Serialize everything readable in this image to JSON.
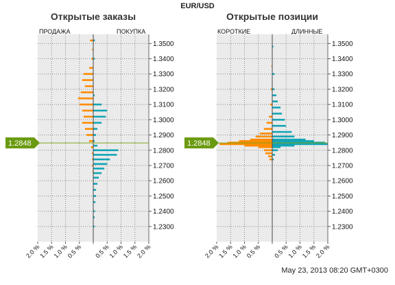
{
  "title": "EUR/USD",
  "timestamp": "May 23, 2013 08:20 GMT+0300",
  "current_price_label": "1.2848",
  "colors": {
    "orange": "#ff8c00",
    "teal": "#13a5b5",
    "price_line": "#7ea31a",
    "marker": "#6a9a10",
    "plot_bg": "#ebebeb"
  },
  "chart_data": [
    {
      "type": "bar",
      "orientation": "horizontal",
      "title": "Открытые заказы",
      "left_label": "ПРОДАЖА",
      "right_label": "ПОКУПКА",
      "ylim": [
        1.22,
        1.356
      ],
      "xlim": [
        -2.0,
        2.0
      ],
      "y_ticks": [
        "1.2300",
        "1.2400",
        "1.2500",
        "1.2600",
        "1.2700",
        "1.2800",
        "1.2900",
        "1.3000",
        "1.3100",
        "1.3200",
        "1.3300",
        "1.3400",
        "1.3500"
      ],
      "x_ticks": [
        "2.0 %",
        "1.5 %",
        "1.0 %",
        "0.5 %",
        "",
        "0.5 %",
        "1.0 %",
        "1.5 %",
        "2.0 %"
      ],
      "current_price": 1.2848,
      "series": [
        {
          "name": "ПРОДАЖА",
          "color": "#ff8c00",
          "points": [
            [
              1.352,
              0.12
            ],
            [
              1.346,
              0.04
            ],
            [
              1.34,
              0.06
            ],
            [
              1.334,
              0.15
            ],
            [
              1.33,
              0.35
            ],
            [
              1.326,
              0.4
            ],
            [
              1.322,
              0.3
            ],
            [
              1.318,
              0.45
            ],
            [
              1.314,
              0.55
            ],
            [
              1.31,
              0.5
            ],
            [
              1.306,
              0.4
            ],
            [
              1.302,
              0.35
            ],
            [
              1.298,
              0.4
            ],
            [
              1.294,
              0.3
            ],
            [
              1.29,
              0.25
            ],
            [
              1.286,
              0.15
            ],
            [
              1.282,
              0.08
            ],
            [
              1.278,
              0.05
            ],
            [
              1.274,
              0.04
            ],
            [
              1.27,
              0.04
            ],
            [
              1.266,
              0.03
            ]
          ]
        },
        {
          "name": "ПОКУПКА",
          "color": "#13a5b5",
          "points": [
            [
              1.352,
              0.06
            ],
            [
              1.34,
              0.05
            ],
            [
              1.316,
              0.05
            ],
            [
              1.31,
              0.3
            ],
            [
              1.306,
              0.5
            ],
            [
              1.302,
              0.45
            ],
            [
              1.298,
              0.3
            ],
            [
              1.294,
              0.15
            ],
            [
              1.29,
              0.1
            ],
            [
              1.286,
              0.05
            ],
            [
              1.283,
              0.15
            ],
            [
              1.28,
              0.9
            ],
            [
              1.277,
              0.85
            ],
            [
              1.274,
              0.6
            ],
            [
              1.271,
              0.5
            ],
            [
              1.268,
              0.4
            ],
            [
              1.265,
              0.3
            ],
            [
              1.262,
              0.2
            ],
            [
              1.258,
              0.15
            ],
            [
              1.254,
              0.1
            ],
            [
              1.25,
              0.1
            ],
            [
              1.246,
              0.08
            ],
            [
              1.24,
              0.06
            ],
            [
              1.236,
              0.05
            ],
            [
              1.23,
              0.05
            ]
          ]
        }
      ]
    },
    {
      "type": "bar",
      "orientation": "horizontal",
      "title": "Открытые позиции",
      "left_label": "КОРОТКИЕ",
      "right_label": "ДЛИННЫЕ",
      "ylim": [
        1.22,
        1.356
      ],
      "xlim": [
        -2.0,
        2.0
      ],
      "y_ticks": [
        "1.2300",
        "1.2400",
        "1.2500",
        "1.2600",
        "1.2700",
        "1.2800",
        "1.2900",
        "1.3000",
        "1.3100",
        "1.3200",
        "1.3300",
        "1.3400",
        "1.3500"
      ],
      "x_ticks": [
        "2.0 %",
        "1.5 %",
        "1.0 %",
        "0.5 %",
        "",
        "0.5 %",
        "1.0 %",
        "1.5 %",
        "2.0 %"
      ],
      "current_price": 1.2848,
      "series": [
        {
          "name": "КОРОТКИЕ",
          "color": "#ff8c00",
          "points": [
            [
              1.335,
              0.03
            ],
            [
              1.32,
              0.05
            ],
            [
              1.31,
              0.08
            ],
            [
              1.302,
              0.12
            ],
            [
              1.298,
              0.2
            ],
            [
              1.294,
              0.3
            ],
            [
              1.291,
              0.45
            ],
            [
              1.289,
              0.6
            ],
            [
              1.287,
              0.8
            ],
            [
              1.286,
              1.2
            ],
            [
              1.285,
              1.6
            ],
            [
              1.284,
              1.9
            ],
            [
              1.283,
              1.0
            ],
            [
              1.282,
              0.5
            ],
            [
              1.28,
              0.3
            ],
            [
              1.278,
              0.25
            ],
            [
              1.276,
              0.15
            ],
            [
              1.274,
              0.1
            ]
          ]
        },
        {
          "name": "ДЛИННЫЕ",
          "color": "#13a5b5",
          "points": [
            [
              1.348,
              0.04
            ],
            [
              1.33,
              0.08
            ],
            [
              1.32,
              0.08
            ],
            [
              1.316,
              0.15
            ],
            [
              1.312,
              0.2
            ],
            [
              1.308,
              0.3
            ],
            [
              1.304,
              0.35
            ],
            [
              1.3,
              0.45
            ],
            [
              1.296,
              0.5
            ],
            [
              1.292,
              0.7
            ],
            [
              1.289,
              0.8
            ],
            [
              1.287,
              1.2
            ],
            [
              1.286,
              1.5
            ],
            [
              1.285,
              1.9
            ],
            [
              1.284,
              2.0
            ],
            [
              1.283,
              0.8
            ],
            [
              1.282,
              0.3
            ],
            [
              1.28,
              0.2
            ],
            [
              1.277,
              0.1
            ],
            [
              1.274,
              0.05
            ]
          ]
        }
      ]
    }
  ]
}
